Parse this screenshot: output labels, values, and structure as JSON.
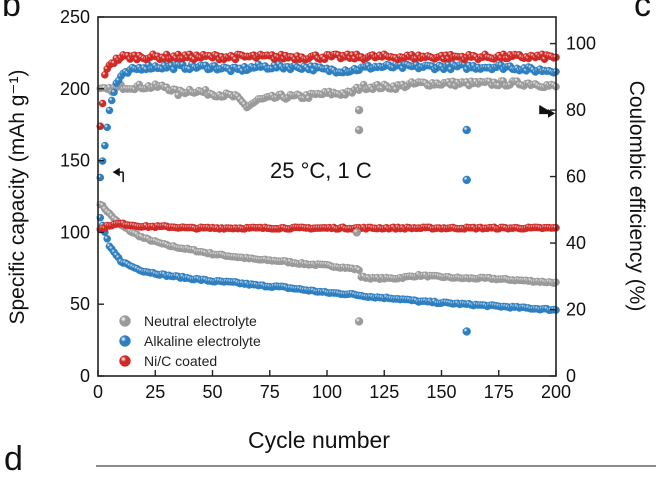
{
  "panel_labels": {
    "top_left": "b",
    "top_right": "c",
    "bottom_left": "d"
  },
  "chart_data": {
    "type": "scatter",
    "annotation": "25 °C, 1 C",
    "xlabel": "Cycle number",
    "ylabel_left": "Specific capacity (mAh g⁻¹)",
    "ylabel_right": "Coulombic efficiency (%)",
    "xlim": [
      0,
      200
    ],
    "ylim_left": [
      0,
      250
    ],
    "ylim_right": [
      0,
      108
    ],
    "x_ticks": [
      "0",
      "25",
      "50",
      "75",
      "100",
      "125",
      "150",
      "175",
      "200"
    ],
    "y_left_ticks": [
      "0",
      "50",
      "100",
      "150",
      "200",
      "250"
    ],
    "y_right_ticks": [
      "0",
      "20",
      "40",
      "60",
      "80",
      "100"
    ],
    "legend": {
      "placement": "bottom-left",
      "entries": [
        "Neutral electrolyte",
        "Alkaline electrolyte",
        "Ni/C coated"
      ]
    },
    "colors": {
      "Neutral electrolyte": "#9a9a9a",
      "Alkaline electrolyte": "#2e7fc0",
      "Ni/C coated": "#cf2a26"
    },
    "series": [
      {
        "name": "Neutral electrolyte",
        "axis": "left",
        "metric": "capacity",
        "x": [
          1,
          5,
          10,
          15,
          20,
          30,
          40,
          50,
          60,
          70,
          80,
          90,
          100,
          110,
          114,
          115,
          120,
          130,
          140,
          150,
          160,
          170,
          180,
          190,
          200
        ],
        "y": [
          120,
          113,
          105,
          100,
          96,
          91,
          88,
          85,
          83,
          81,
          80,
          78,
          77,
          75,
          74,
          69,
          68,
          68,
          70,
          69,
          68,
          68,
          67,
          66,
          65
        ]
      },
      {
        "name": "Alkaline electrolyte",
        "axis": "left",
        "metric": "capacity",
        "x": [
          1,
          5,
          10,
          15,
          20,
          30,
          40,
          50,
          60,
          70,
          80,
          90,
          100,
          110,
          120,
          130,
          140,
          150,
          160,
          170,
          180,
          190,
          200
        ],
        "y": [
          110,
          90,
          80,
          76,
          73,
          70,
          68,
          66,
          65,
          63,
          62,
          60,
          58,
          57,
          55,
          54,
          52,
          51,
          50,
          49,
          48,
          47,
          46
        ]
      },
      {
        "name": "Ni/C coated",
        "axis": "left",
        "metric": "capacity",
        "x": [
          1,
          5,
          10,
          15,
          20,
          30,
          40,
          50,
          60,
          70,
          80,
          90,
          100,
          110,
          120,
          130,
          140,
          150,
          160,
          170,
          180,
          190,
          200
        ],
        "y": [
          102,
          105,
          106,
          105,
          104,
          104,
          103,
          103,
          103,
          103,
          103,
          103,
          103,
          103,
          103,
          103,
          103,
          103,
          103,
          103,
          103,
          103,
          103
        ]
      },
      {
        "name": "Neutral electrolyte",
        "axis": "right",
        "metric": "coulombic_efficiency",
        "x": [
          1,
          5,
          10,
          15,
          20,
          30,
          35,
          40,
          50,
          60,
          65,
          70,
          80,
          90,
          100,
          110,
          115,
          120,
          130,
          140,
          150,
          160,
          170,
          180,
          190,
          200
        ],
        "y": [
          86,
          86,
          87,
          87,
          87,
          87,
          85,
          86,
          85,
          84,
          81,
          83,
          84,
          84,
          85,
          85,
          87,
          87,
          87,
          88,
          88,
          88,
          88,
          88,
          88,
          87
        ]
      },
      {
        "name": "Alkaline electrolyte",
        "axis": "right",
        "metric": "coulombic_efficiency",
        "x": [
          1,
          3,
          5,
          8,
          10,
          15,
          20,
          30,
          40,
          50,
          60,
          70,
          80,
          90,
          100,
          110,
          120,
          130,
          140,
          150,
          160,
          170,
          180,
          190,
          200
        ],
        "y": [
          60,
          70,
          80,
          88,
          90,
          92,
          93,
          93,
          93,
          93,
          92,
          93,
          93,
          93,
          92,
          92,
          93,
          93,
          93,
          93,
          93,
          93,
          93,
          92,
          92
        ]
      },
      {
        "name": "Ni/C coated",
        "axis": "right",
        "metric": "coulombic_efficiency",
        "x": [
          1,
          3,
          5,
          8,
          10,
          15,
          20,
          30,
          40,
          50,
          60,
          70,
          80,
          90,
          100,
          110,
          120,
          130,
          140,
          150,
          160,
          170,
          180,
          190,
          200
        ],
        "y": [
          75,
          90,
          94,
          95,
          96,
          96,
          96,
          96,
          96,
          96,
          96,
          96,
          96,
          96,
          96,
          96,
          96,
          96,
          96,
          96,
          96,
          96,
          96,
          96,
          96
        ]
      }
    ],
    "outliers": [
      {
        "series": "Neutral electrolyte",
        "axis": "right",
        "x": 114,
        "y": 80
      },
      {
        "series": "Neutral electrolyte",
        "axis": "right",
        "x": 114,
        "y": 74
      },
      {
        "series": "Neutral electrolyte",
        "axis": "left",
        "x": 114,
        "y": 38
      },
      {
        "series": "Neutral electrolyte",
        "axis": "left",
        "x": 113,
        "y": 100
      },
      {
        "series": "Alkaline electrolyte",
        "axis": "right",
        "x": 161,
        "y": 74
      },
      {
        "series": "Alkaline electrolyte",
        "axis": "right",
        "x": 161,
        "y": 59
      },
      {
        "series": "Alkaline electrolyte",
        "axis": "left",
        "x": 161,
        "y": 31
      }
    ]
  }
}
